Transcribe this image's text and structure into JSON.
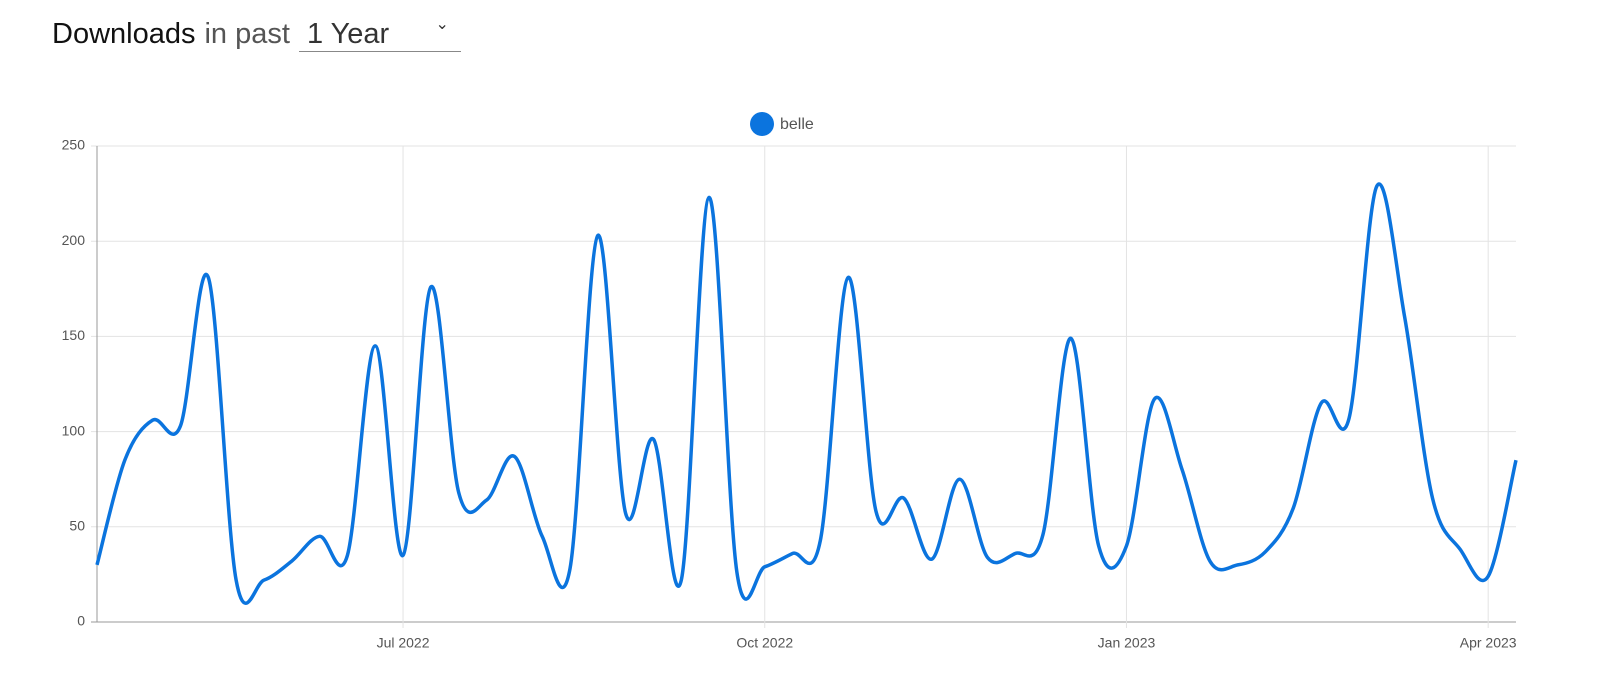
{
  "header": {
    "title": "Downloads",
    "label": "in past",
    "select": "1 Year"
  },
  "chart_data": {
    "type": "line",
    "categories": [
      null,
      null,
      null,
      null,
      null,
      null,
      null,
      null,
      null,
      null,
      null,
      "Jul 2022",
      null,
      null,
      null,
      null,
      null,
      null,
      null,
      null,
      null,
      null,
      null,
      null,
      "Oct 2022",
      null,
      null,
      null,
      null,
      null,
      null,
      null,
      null,
      null,
      null,
      null,
      null,
      "Jan 2023",
      null,
      null,
      null,
      null,
      null,
      null,
      null,
      null,
      null,
      null,
      null,
      null,
      "Apr 2023",
      null
    ],
    "series": [
      {
        "name": "belle",
        "color": "#0b74de",
        "values": [
          30,
          85,
          106,
          103,
          181,
          22,
          22,
          32,
          45,
          35,
          145,
          35,
          176,
          68,
          64,
          87,
          45,
          28,
          203,
          57,
          96,
          22,
          223,
          26,
          29,
          36,
          43,
          181,
          58,
          65,
          33,
          75,
          34,
          36,
          46,
          149,
          40,
          40,
          117,
          80,
          32,
          30,
          37,
          60,
          115,
          107,
          229,
          160,
          65,
          38,
          24,
          85
        ]
      }
    ],
    "ylim": [
      0,
      250
    ],
    "yticks": [
      0,
      50,
      100,
      150,
      200,
      250
    ],
    "grid": true,
    "legend": "top"
  }
}
